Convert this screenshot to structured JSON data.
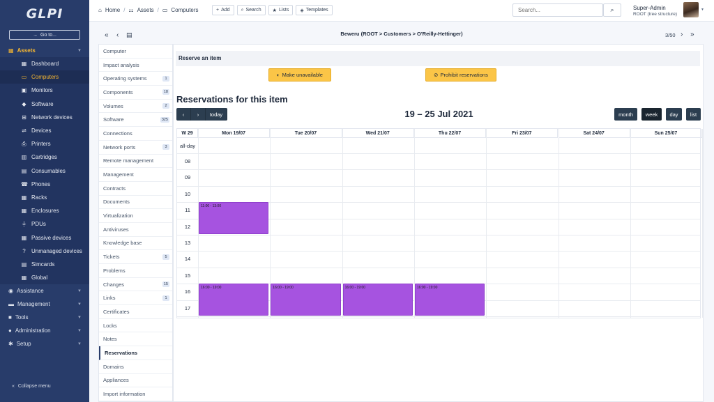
{
  "app": {
    "logo": "GLPI"
  },
  "sidebar": {
    "goto_label": "Go to...",
    "sections": [
      {
        "label": "Assets",
        "icon": "boxes-icon"
      },
      {
        "label": "Assistance",
        "icon": "headset-icon"
      },
      {
        "label": "Management",
        "icon": "wallet-icon"
      },
      {
        "label": "Tools",
        "icon": "briefcase-icon"
      },
      {
        "label": "Administration",
        "icon": "users-cog-icon"
      },
      {
        "label": "Setup",
        "icon": "cogs-icon"
      }
    ],
    "asset_items": [
      {
        "label": "Dashboard",
        "icon": "dashboard-icon"
      },
      {
        "label": "Computers",
        "icon": "laptop-icon"
      },
      {
        "label": "Monitors",
        "icon": "monitor-icon"
      },
      {
        "label": "Software",
        "icon": "software-icon"
      },
      {
        "label": "Network devices",
        "icon": "network-icon"
      },
      {
        "label": "Devices",
        "icon": "usb-icon"
      },
      {
        "label": "Printers",
        "icon": "printer-icon"
      },
      {
        "label": "Cartridges",
        "icon": "cartridge-icon"
      },
      {
        "label": "Consumables",
        "icon": "box-icon"
      },
      {
        "label": "Phones",
        "icon": "phone-icon"
      },
      {
        "label": "Racks",
        "icon": "rack-icon"
      },
      {
        "label": "Enclosures",
        "icon": "enclosure-icon"
      },
      {
        "label": "PDUs",
        "icon": "plug-icon"
      },
      {
        "label": "Passive devices",
        "icon": "passive-icon"
      },
      {
        "label": "Unmanaged devices",
        "icon": "unmanaged-icon"
      },
      {
        "label": "Simcards",
        "icon": "simcard-icon"
      },
      {
        "label": "Global",
        "icon": "global-icon"
      }
    ],
    "collapse_label": "Collapse menu"
  },
  "topbar": {
    "breadcrumb": [
      "Home",
      "Assets",
      "Computers"
    ],
    "actions": [
      "Add",
      "Search",
      "Lists",
      "Templates"
    ],
    "search_placeholder": "Search...",
    "user_name": "Super-Admin",
    "user_entity": "ROOT (tree structure)"
  },
  "item": {
    "title": "Beweru (ROOT > Customers > O'Reilly-Hettinger)",
    "pager": "3/50"
  },
  "tabs": [
    {
      "label": "Computer",
      "badge": ""
    },
    {
      "label": "Impact analysis",
      "badge": ""
    },
    {
      "label": "Operating systems",
      "badge": "1"
    },
    {
      "label": "Components",
      "badge": "18"
    },
    {
      "label": "Volumes",
      "badge": "2"
    },
    {
      "label": "Software",
      "badge": "325"
    },
    {
      "label": "Connections",
      "badge": ""
    },
    {
      "label": "Network ports",
      "badge": "3"
    },
    {
      "label": "Remote management",
      "badge": ""
    },
    {
      "label": "Management",
      "badge": ""
    },
    {
      "label": "Contracts",
      "badge": ""
    },
    {
      "label": "Documents",
      "badge": ""
    },
    {
      "label": "Virtualization",
      "badge": ""
    },
    {
      "label": "Antiviruses",
      "badge": ""
    },
    {
      "label": "Knowledge base",
      "badge": ""
    },
    {
      "label": "Tickets",
      "badge": "5"
    },
    {
      "label": "Problems",
      "badge": ""
    },
    {
      "label": "Changes",
      "badge": "15"
    },
    {
      "label": "Links",
      "badge": "1"
    },
    {
      "label": "Certificates",
      "badge": ""
    },
    {
      "label": "Locks",
      "badge": ""
    },
    {
      "label": "Notes",
      "badge": ""
    },
    {
      "label": "Reservations",
      "badge": ""
    },
    {
      "label": "Domains",
      "badge": ""
    },
    {
      "label": "Appliances",
      "badge": ""
    },
    {
      "label": "Import information",
      "badge": ""
    }
  ],
  "reservation": {
    "section_title": "Reserve an item",
    "make_unavailable": "Make unavailable",
    "prohibit": "Prohibit reservations",
    "heading": "Reservations for this item"
  },
  "calendar": {
    "today_label": "today",
    "range": "19 – 25 Jul 2021",
    "views": [
      "month",
      "week",
      "day",
      "list"
    ],
    "active_view": "week",
    "week_label": "W 29",
    "days": [
      "Mon 19/07",
      "Tue 20/07",
      "Wed 21/07",
      "Thu 22/07",
      "Fri 23/07",
      "Sat 24/07",
      "Sun 25/07"
    ],
    "allday_label": "all-day",
    "hours": [
      "08",
      "09",
      "10",
      "11",
      "12",
      "13",
      "14",
      "15",
      "16",
      "17"
    ],
    "events": [
      {
        "day": 0,
        "start": 11,
        "end": 13,
        "label": "11:00 - 13:00"
      },
      {
        "day": 0,
        "start": 16,
        "end": 18,
        "label": "16:00 - 19:00"
      },
      {
        "day": 1,
        "start": 16,
        "end": 18,
        "label": "16:00 - 19:00"
      },
      {
        "day": 2,
        "start": 16,
        "end": 18,
        "label": "16:00 - 19:00"
      },
      {
        "day": 3,
        "start": 16,
        "end": 18,
        "label": "16:00 - 19:00"
      }
    ],
    "event_color": "#a653e0"
  }
}
